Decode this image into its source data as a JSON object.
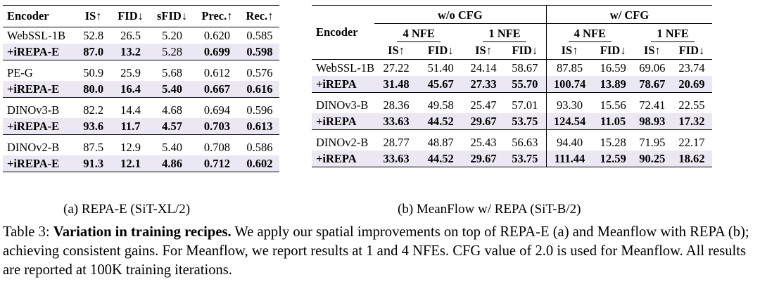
{
  "table_a": {
    "headers": [
      "Encoder",
      "IS↑",
      "FID↓",
      "sFID↓",
      "Prec.↑",
      "Rec.↑"
    ],
    "groups": [
      {
        "rows": [
          [
            "WebSSL-1B",
            "52.8",
            "26.5",
            "5.20",
            "0.620",
            "0.585"
          ],
          [
            "+iREPA-E",
            "87.0",
            "13.2",
            "5.28",
            "0.699",
            "0.598"
          ]
        ]
      },
      {
        "rows": [
          [
            "PE-G",
            "50.9",
            "25.9",
            "5.68",
            "0.612",
            "0.576"
          ],
          [
            "+iREPA-E",
            "80.0",
            "16.4",
            "5.40",
            "0.667",
            "0.616"
          ]
        ]
      },
      {
        "rows": [
          [
            "DINOv3-B",
            "82.2",
            "14.4",
            "4.68",
            "0.694",
            "0.596"
          ],
          [
            "+iREPA-E",
            "93.6",
            "11.7",
            "4.57",
            "0.703",
            "0.613"
          ]
        ]
      },
      {
        "rows": [
          [
            "DINOv2-B",
            "87.5",
            "12.9",
            "5.40",
            "0.708",
            "0.586"
          ],
          [
            "+iREPA-E",
            "91.3",
            "12.1",
            "4.86",
            "0.712",
            "0.602"
          ]
        ]
      }
    ],
    "subcaption": "(a) REPA-E (SiT-XL/2)"
  },
  "table_b": {
    "encoder_header": "Encoder",
    "cfg_headers": [
      "w/o CFG",
      "w/ CFG"
    ],
    "nfe_headers": [
      "4 NFE",
      "1 NFE",
      "4 NFE",
      "1 NFE"
    ],
    "metric_headers": [
      "IS↑",
      "FID↓",
      "IS↑",
      "FID↓",
      "IS↑",
      "FID↓",
      "IS↑",
      "FID↓"
    ],
    "groups": [
      {
        "rows": [
          [
            "WebSSL-1B",
            "27.22",
            "51.40",
            "24.14",
            "58.67",
            "87.85",
            "16.59",
            "69.06",
            "23.74"
          ],
          [
            "+iREPA",
            "31.48",
            "45.67",
            "27.33",
            "55.70",
            "100.74",
            "13.89",
            "78.67",
            "20.69"
          ]
        ]
      },
      {
        "rows": [
          [
            "DINOv3-B",
            "28.36",
            "49.58",
            "25.47",
            "57.01",
            "93.30",
            "15.56",
            "72.41",
            "22.55"
          ],
          [
            "+iREPA",
            "33.63",
            "44.52",
            "29.67",
            "53.75",
            "124.54",
            "11.05",
            "98.93",
            "17.32"
          ]
        ]
      },
      {
        "rows": [
          [
            "DINOv2-B",
            "28.77",
            "48.87",
            "25.43",
            "56.63",
            "94.40",
            "15.28",
            "71.95",
            "22.17"
          ],
          [
            "+iREPA",
            "33.63",
            "44.52",
            "29.67",
            "53.75",
            "111.44",
            "12.59",
            "90.25",
            "18.62"
          ]
        ]
      }
    ],
    "subcaption": "(b) MeanFlow w/ REPA (SiT-B/2)"
  },
  "caption": {
    "label": "Table 3:",
    "title": "Variation in training recipes.",
    "text": "We apply our spatial improvements on top of REPA-E (a) and Meanflow with REPA (b); achieving consistent gains. For Meanflow, we report results at 1 and 4 NFEs. CFG value of 2.0 is used for Meanflow. All results are reported at 100K training iterations."
  },
  "highlight_color": "#ebe8f4"
}
